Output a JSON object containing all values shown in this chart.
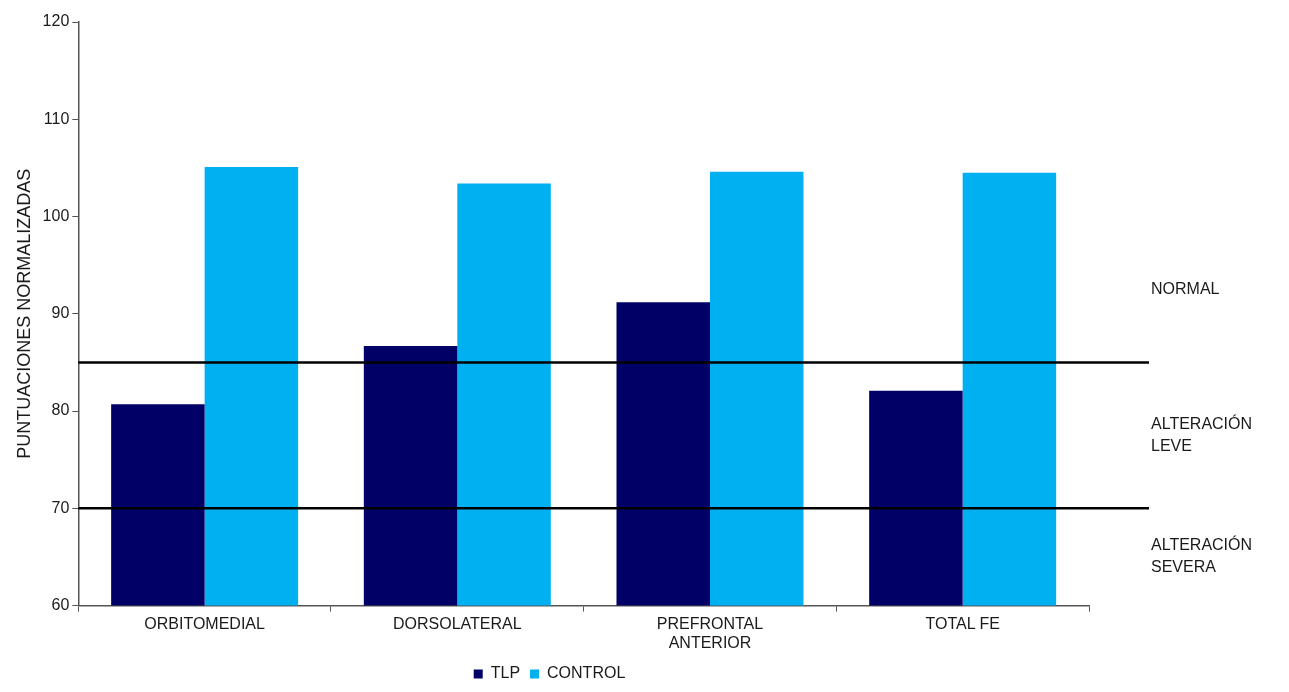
{
  "chart_data": {
    "type": "bar",
    "ylabel": "PUNTUACIONES NORMALIZADAS",
    "categories": [
      "ORBITOMEDIAL",
      "DORSOLATERAL",
      "PREFRONTAL ANTERIOR",
      "TOTAL FE"
    ],
    "series": [
      {
        "name": "TLP",
        "color": "#000066",
        "values": [
          80.7,
          86.7,
          91.2,
          82.1
        ]
      },
      {
        "name": "CONTROL",
        "color": "#00b0f0",
        "values": [
          105.1,
          103.4,
          104.6,
          104.5
        ]
      }
    ],
    "ylim": [
      60,
      120
    ],
    "yticks": [
      60,
      70,
      80,
      90,
      100,
      110,
      120
    ],
    "grid": false,
    "legend": "bottom",
    "ref_lines": [
      {
        "axis": "y",
        "value": 85,
        "color": "#000000"
      },
      {
        "axis": "y",
        "value": 70,
        "color": "#000000"
      }
    ],
    "annotations": [
      "NORMAL",
      "ALTERACIÓN LEVE",
      "ALTERACIÓN SEVERA"
    ]
  }
}
